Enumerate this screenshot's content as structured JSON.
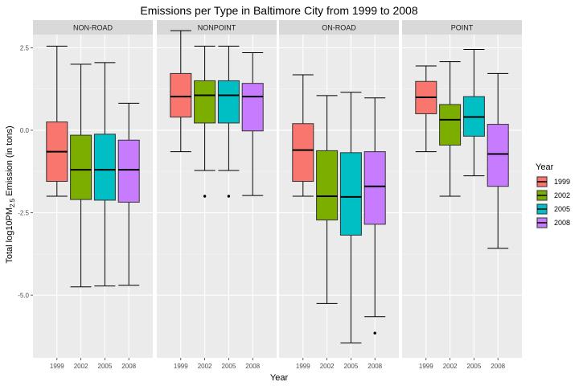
{
  "chart_data": {
    "type": "box",
    "title": "Emissions per Type in Baltimore City from 1999 to 2008",
    "xlabel": "Year",
    "ylabel": {
      "prefix": "Total log10PM",
      "subscript": "2.5",
      "suffix": " Emission (in tons)"
    },
    "ylim": [
      -6.9,
      2.9
    ],
    "yticks": [
      2.5,
      0.0,
      -2.5,
      -5.0
    ],
    "ytick_labels": [
      "2.5",
      "0.0",
      "-2.5",
      "-5.0"
    ],
    "categories": [
      "1999",
      "2002",
      "2005",
      "2008"
    ],
    "grid": true,
    "legend": {
      "title": "Year",
      "position": "right",
      "entries": [
        {
          "label": "1999",
          "color": "#F8766D"
        },
        {
          "label": "2002",
          "color": "#7CAE00"
        },
        {
          "label": "2005",
          "color": "#00BFC4"
        },
        {
          "label": "2008",
          "color": "#C77CFF"
        }
      ]
    },
    "panels": [
      {
        "label": "NON-ROAD",
        "boxes": [
          {
            "year": "1999",
            "min": -2.0,
            "q1": -1.55,
            "median": -0.65,
            "q3": 0.25,
            "max": 2.55,
            "outliers": []
          },
          {
            "year": "2002",
            "min": -4.75,
            "q1": -2.1,
            "median": -1.2,
            "q3": -0.15,
            "max": 2.0,
            "outliers": []
          },
          {
            "year": "2005",
            "min": -4.72,
            "q1": -2.12,
            "median": -1.2,
            "q3": -0.12,
            "max": 2.05,
            "outliers": []
          },
          {
            "year": "2008",
            "min": -4.7,
            "q1": -2.18,
            "median": -1.2,
            "q3": -0.3,
            "max": 0.82,
            "outliers": []
          }
        ]
      },
      {
        "label": "NONPOINT",
        "boxes": [
          {
            "year": "1999",
            "min": -0.65,
            "q1": 0.4,
            "median": 1.02,
            "q3": 1.72,
            "max": 3.02,
            "outliers": []
          },
          {
            "year": "2002",
            "min": -1.22,
            "q1": 0.22,
            "median": 1.06,
            "q3": 1.5,
            "max": 2.55,
            "outliers": [
              -2.0
            ]
          },
          {
            "year": "2005",
            "min": -1.22,
            "q1": 0.22,
            "median": 1.06,
            "q3": 1.5,
            "max": 2.55,
            "outliers": [
              -2.0
            ]
          },
          {
            "year": "2008",
            "min": -1.98,
            "q1": -0.02,
            "median": 1.02,
            "q3": 1.42,
            "max": 2.35,
            "outliers": []
          }
        ]
      },
      {
        "label": "ON-ROAD",
        "boxes": [
          {
            "year": "1999",
            "min": -2.0,
            "q1": -1.55,
            "median": -0.6,
            "q3": 0.2,
            "max": 1.68,
            "outliers": []
          },
          {
            "year": "2002",
            "min": -5.25,
            "q1": -2.72,
            "median": -2.0,
            "q3": -0.62,
            "max": 1.05,
            "outliers": []
          },
          {
            "year": "2005",
            "min": -6.45,
            "q1": -3.18,
            "median": -2.02,
            "q3": -0.68,
            "max": 1.15,
            "outliers": []
          },
          {
            "year": "2008",
            "min": -5.65,
            "q1": -2.85,
            "median": -1.7,
            "q3": -0.65,
            "max": 0.98,
            "outliers": [
              -6.15
            ]
          }
        ]
      },
      {
        "label": "POINT",
        "boxes": [
          {
            "year": "1999",
            "min": -0.65,
            "q1": 0.5,
            "median": 1.0,
            "q3": 1.48,
            "max": 1.95,
            "outliers": []
          },
          {
            "year": "2002",
            "min": -2.0,
            "q1": -0.45,
            "median": 0.32,
            "q3": 0.78,
            "max": 2.08,
            "outliers": []
          },
          {
            "year": "2005",
            "min": -1.38,
            "q1": -0.18,
            "median": 0.4,
            "q3": 1.02,
            "max": 2.45,
            "outliers": []
          },
          {
            "year": "2008",
            "min": -3.58,
            "q1": -1.7,
            "median": -0.72,
            "q3": 0.18,
            "max": 1.72,
            "outliers": []
          }
        ]
      }
    ]
  }
}
